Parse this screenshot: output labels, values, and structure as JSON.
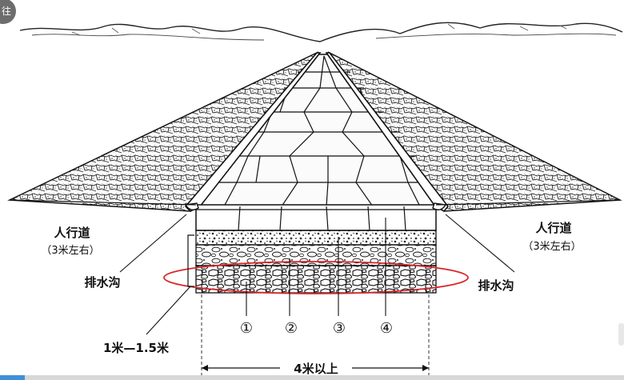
{
  "corner_badge": "往",
  "colors": {
    "ink": "#111111",
    "highlight_ellipse": "#d9262a",
    "progress_fill": "#3f8fd9"
  },
  "labels": {
    "sidewalk_left": "人行道",
    "sidewalk_left_width": "（3米左右）",
    "sidewalk_right": "人行道",
    "sidewalk_right_width": "（3米左右）",
    "ditch_left": "排水沟",
    "ditch_right": "排水沟",
    "depth": "1米—1.5米",
    "road_width": "4米以上"
  },
  "layers": [
    "①",
    "②",
    "③",
    "④"
  ],
  "video_progress": 0.04
}
